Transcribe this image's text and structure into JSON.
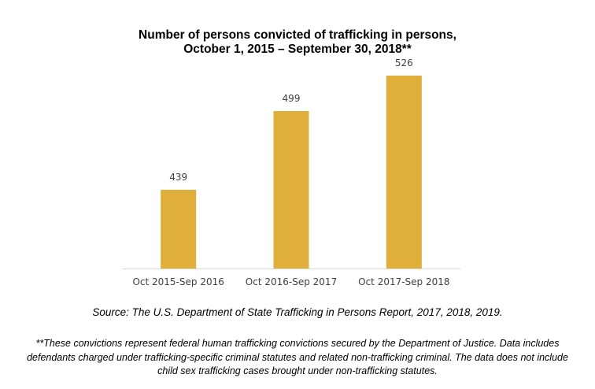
{
  "chart_data": {
    "type": "bar",
    "title": "Number of persons convicted of trafficking in persons,",
    "subtitle": "October 1, 2015 – September 30, 2018**",
    "categories": [
      "Oct 2015-Sep 2016",
      "Oct 2016-Sep 2017",
      "Oct 2017-Sep 2018"
    ],
    "values": [
      439,
      499,
      526
    ],
    "ylim": [
      379,
      540
    ],
    "grid": false,
    "bar_color": "#DFAE3B",
    "xlabel": "",
    "ylabel": ""
  },
  "source": "Source: The U.S. Department of State Trafficking in Persons Report, 2017, 2018, 2019.",
  "footnote": "**These convictions represent federal human trafficking convictions secured by the Department of Justice. Data includes defendants charged under trafficking-specific criminal statutes and related non-trafficking criminal. The data does not include child sex trafficking cases brought under non-trafficking statutes."
}
